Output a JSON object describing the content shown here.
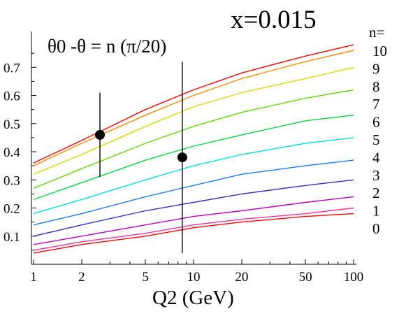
{
  "chart_data": {
    "type": "line",
    "title": "x=0.015",
    "subtitle": "θ0 -θ = n (π/20)",
    "xlabel": "Q2 (GeV)",
    "ylabel": "",
    "x_scale": "log",
    "xlim": [
      1,
      100
    ],
    "ylim": [
      0.0,
      0.82
    ],
    "grid": false,
    "x_ticks": [
      1,
      2,
      5,
      10,
      20,
      50,
      100
    ],
    "x_tick_labels": [
      "1",
      "2",
      "5",
      "10",
      "20",
      "50",
      "100"
    ],
    "y_ticks": [
      0.1,
      0.2,
      0.3,
      0.4,
      0.5,
      0.6,
      0.7
    ],
    "y_tick_labels": [
      "0.1",
      "0.2",
      "0.3",
      "0.4",
      "0.5",
      "0.6",
      "0.7"
    ],
    "legend_header": "n=",
    "legend_labels": [
      "10",
      "9",
      "8",
      "7",
      "6",
      "5",
      "4",
      "3",
      "2",
      "1",
      "0"
    ],
    "x": [
      1,
      2,
      5,
      10,
      20,
      50,
      100
    ],
    "series": [
      {
        "name": "10",
        "color": "#ff0000",
        "values": [
          0.36,
          0.44,
          0.55,
          0.62,
          0.68,
          0.74,
          0.78
        ]
      },
      {
        "name": "9",
        "color": "#ff8c00",
        "values": [
          0.35,
          0.43,
          0.53,
          0.6,
          0.66,
          0.72,
          0.76
        ]
      },
      {
        "name": "8",
        "color": "#d9d900",
        "values": [
          0.32,
          0.39,
          0.49,
          0.56,
          0.61,
          0.66,
          0.7
        ]
      },
      {
        "name": "7",
        "color": "#66d900",
        "values": [
          0.27,
          0.34,
          0.43,
          0.49,
          0.54,
          0.59,
          0.62
        ]
      },
      {
        "name": "6",
        "color": "#00d940",
        "values": [
          0.23,
          0.29,
          0.37,
          0.42,
          0.46,
          0.51,
          0.53
        ]
      },
      {
        "name": "5",
        "color": "#00e0e0",
        "values": [
          0.18,
          0.23,
          0.3,
          0.35,
          0.39,
          0.43,
          0.45
        ]
      },
      {
        "name": "4",
        "color": "#1e78ff",
        "values": [
          0.14,
          0.18,
          0.24,
          0.28,
          0.32,
          0.35,
          0.37
        ]
      },
      {
        "name": "3",
        "color": "#3030c8",
        "values": [
          0.1,
          0.14,
          0.19,
          0.22,
          0.25,
          0.28,
          0.3
        ]
      },
      {
        "name": "2",
        "color": "#c000c0",
        "values": [
          0.07,
          0.1,
          0.14,
          0.17,
          0.19,
          0.22,
          0.24
        ]
      },
      {
        "name": "1",
        "color": "#ff2d9a",
        "values": [
          0.05,
          0.08,
          0.11,
          0.14,
          0.16,
          0.18,
          0.2
        ]
      },
      {
        "name": "0",
        "color": "#ff0000",
        "values": [
          0.04,
          0.07,
          0.1,
          0.13,
          0.15,
          0.17,
          0.18
        ]
      }
    ],
    "data_points": [
      {
        "x": 2.6,
        "y": 0.46,
        "y_low": 0.31,
        "y_high": 0.61
      },
      {
        "x": 8.5,
        "y": 0.38,
        "y_low": 0.04,
        "y_high": 0.72
      }
    ]
  }
}
